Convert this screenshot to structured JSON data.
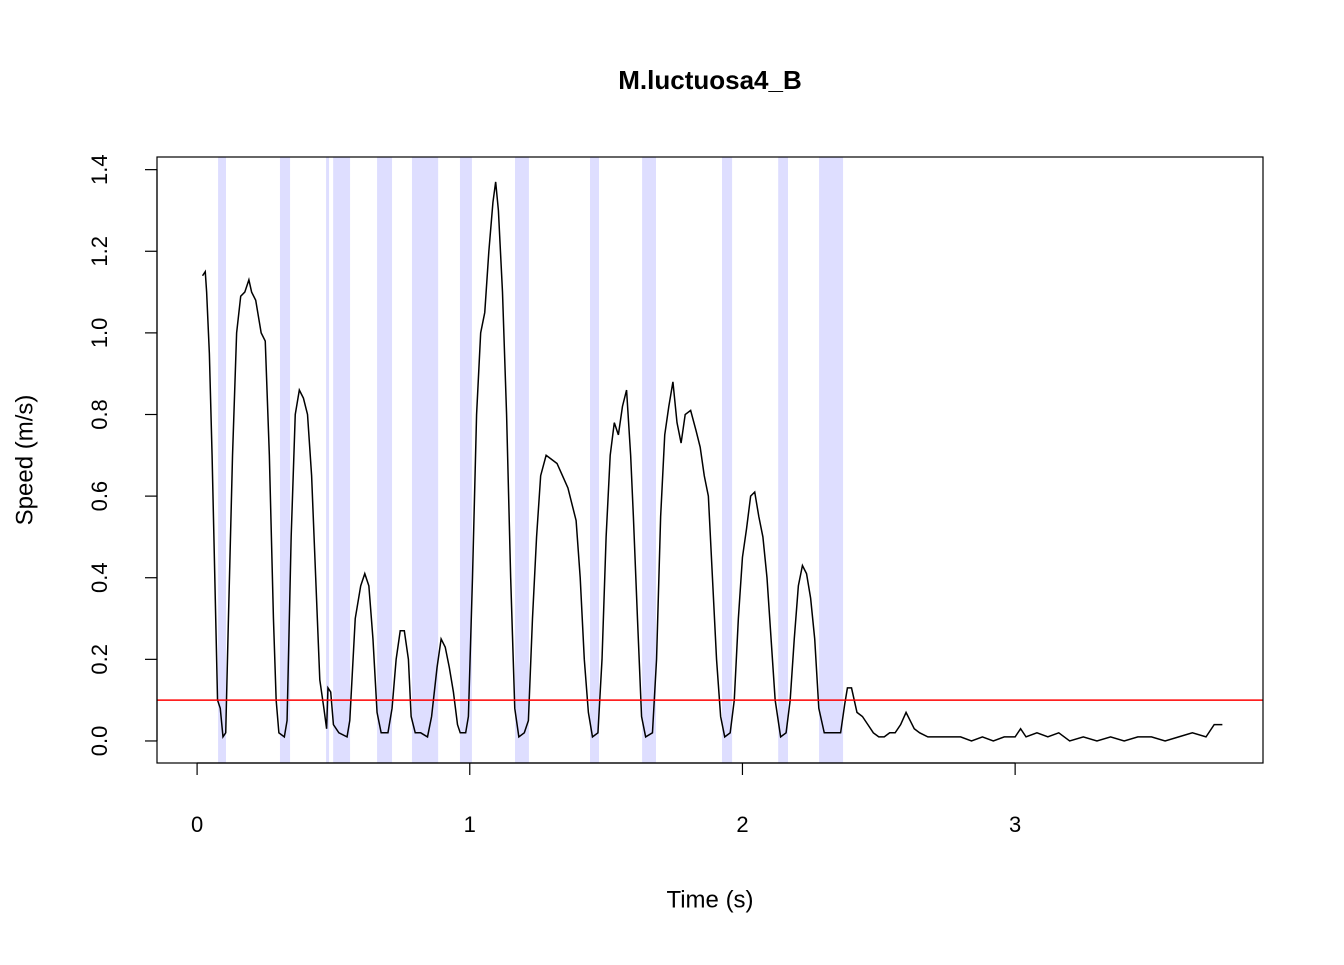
{
  "chart_data": {
    "type": "line",
    "title": "M.luctuosa4_B",
    "x_label": "Time (s)",
    "y_label": "Speed (m/s)",
    "x": [
      0.02,
      0.03,
      0.035,
      0.045,
      0.055,
      0.065,
      0.075,
      0.085,
      0.095,
      0.105,
      0.115,
      0.13,
      0.145,
      0.16,
      0.175,
      0.19,
      0.2,
      0.215,
      0.235,
      0.25,
      0.265,
      0.28,
      0.29,
      0.3,
      0.32,
      0.33,
      0.345,
      0.36,
      0.375,
      0.39,
      0.405,
      0.42,
      0.435,
      0.45,
      0.465,
      0.475,
      0.48,
      0.49,
      0.5,
      0.52,
      0.55,
      0.56,
      0.58,
      0.6,
      0.615,
      0.63,
      0.645,
      0.66,
      0.675,
      0.7,
      0.715,
      0.73,
      0.745,
      0.76,
      0.775,
      0.785,
      0.8,
      0.82,
      0.845,
      0.86,
      0.88,
      0.895,
      0.91,
      0.925,
      0.94,
      0.955,
      0.965,
      0.985,
      0.995,
      1.01,
      1.025,
      1.04,
      1.055,
      1.07,
      1.085,
      1.095,
      1.105,
      1.12,
      1.135,
      1.15,
      1.165,
      1.18,
      1.2,
      1.215,
      1.23,
      1.245,
      1.26,
      1.28,
      1.3,
      1.32,
      1.34,
      1.36,
      1.375,
      1.39,
      1.405,
      1.42,
      1.435,
      1.45,
      1.47,
      1.485,
      1.5,
      1.515,
      1.53,
      1.545,
      1.56,
      1.575,
      1.59,
      1.6,
      1.615,
      1.63,
      1.645,
      1.67,
      1.685,
      1.7,
      1.715,
      1.73,
      1.745,
      1.76,
      1.775,
      1.79,
      1.81,
      1.83,
      1.845,
      1.86,
      1.875,
      1.89,
      1.905,
      1.92,
      1.935,
      1.955,
      1.97,
      1.985,
      2.0,
      2.015,
      2.03,
      2.045,
      2.06,
      2.075,
      2.09,
      2.105,
      2.12,
      2.14,
      2.16,
      2.175,
      2.19,
      2.205,
      2.22,
      2.235,
      2.25,
      2.265,
      2.28,
      2.3,
      2.33,
      2.36,
      2.375,
      2.385,
      2.4,
      2.42,
      2.44,
      2.46,
      2.48,
      2.5,
      2.52,
      2.54,
      2.56,
      2.58,
      2.6,
      2.615,
      2.63,
      2.65,
      2.68,
      2.72,
      2.76,
      2.8,
      2.84,
      2.88,
      2.92,
      2.96,
      3.0,
      3.02,
      3.04,
      3.08,
      3.12,
      3.16,
      3.2,
      3.25,
      3.3,
      3.35,
      3.4,
      3.45,
      3.5,
      3.55,
      3.6,
      3.65,
      3.7,
      3.73,
      3.76
    ],
    "values": [
      1.14,
      1.15,
      1.1,
      0.95,
      0.7,
      0.4,
      0.1,
      0.08,
      0.01,
      0.02,
      0.3,
      0.7,
      1.0,
      1.09,
      1.1,
      1.13,
      1.1,
      1.08,
      1.0,
      0.98,
      0.7,
      0.3,
      0.1,
      0.02,
      0.01,
      0.05,
      0.5,
      0.8,
      0.86,
      0.84,
      0.8,
      0.65,
      0.4,
      0.15,
      0.08,
      0.03,
      0.13,
      0.12,
      0.04,
      0.02,
      0.01,
      0.05,
      0.3,
      0.38,
      0.41,
      0.38,
      0.25,
      0.07,
      0.02,
      0.02,
      0.08,
      0.2,
      0.27,
      0.27,
      0.2,
      0.06,
      0.02,
      0.02,
      0.01,
      0.06,
      0.18,
      0.25,
      0.23,
      0.18,
      0.12,
      0.04,
      0.02,
      0.02,
      0.06,
      0.4,
      0.8,
      1.0,
      1.05,
      1.2,
      1.32,
      1.37,
      1.3,
      1.1,
      0.8,
      0.4,
      0.08,
      0.01,
      0.02,
      0.05,
      0.3,
      0.5,
      0.65,
      0.7,
      0.69,
      0.68,
      0.65,
      0.62,
      0.58,
      0.54,
      0.4,
      0.2,
      0.07,
      0.01,
      0.02,
      0.2,
      0.5,
      0.7,
      0.78,
      0.75,
      0.82,
      0.86,
      0.7,
      0.55,
      0.3,
      0.06,
      0.01,
      0.02,
      0.2,
      0.55,
      0.75,
      0.82,
      0.88,
      0.78,
      0.73,
      0.8,
      0.81,
      0.76,
      0.72,
      0.65,
      0.6,
      0.4,
      0.2,
      0.06,
      0.01,
      0.02,
      0.1,
      0.3,
      0.45,
      0.52,
      0.6,
      0.61,
      0.55,
      0.5,
      0.4,
      0.25,
      0.1,
      0.01,
      0.02,
      0.1,
      0.25,
      0.38,
      0.43,
      0.41,
      0.35,
      0.25,
      0.08,
      0.02,
      0.02,
      0.02,
      0.09,
      0.13,
      0.13,
      0.07,
      0.06,
      0.04,
      0.02,
      0.01,
      0.01,
      0.02,
      0.02,
      0.04,
      0.07,
      0.05,
      0.03,
      0.02,
      0.01,
      0.01,
      0.01,
      0.01,
      0.0,
      0.01,
      0.0,
      0.01,
      0.01,
      0.03,
      0.01,
      0.02,
      0.01,
      0.02,
      0.0,
      0.01,
      0.0,
      0.01,
      0.0,
      0.01,
      0.01,
      0.0,
      0.01,
      0.02,
      0.01,
      0.04,
      0.04
    ],
    "color": "#000000",
    "shaded_intervals": [
      [
        0.077,
        0.106
      ],
      [
        0.304,
        0.341
      ],
      [
        0.473,
        0.484
      ],
      [
        0.499,
        0.561
      ],
      [
        0.66,
        0.715
      ],
      [
        0.788,
        0.884
      ],
      [
        0.964,
        1.008
      ],
      [
        1.166,
        1.217
      ],
      [
        1.441,
        1.474
      ],
      [
        1.632,
        1.683
      ],
      [
        1.925,
        1.962
      ],
      [
        2.131,
        2.167
      ],
      [
        2.281,
        2.369
      ]
    ],
    "shade_color": "#dedeff",
    "threshold": 0.1,
    "threshold_color": "#ff0000",
    "xlim": [
      -0.147,
      3.909
    ],
    "xticks": [
      0,
      1,
      2,
      3
    ],
    "ylim": [
      -0.054,
      1.431
    ],
    "yticks": [
      {
        "value": 0,
        "label": "0.0"
      },
      0.2,
      0.4,
      0.6,
      0.8,
      {
        "value": 1,
        "label": "1.0"
      },
      1.2,
      1.4
    ]
  }
}
